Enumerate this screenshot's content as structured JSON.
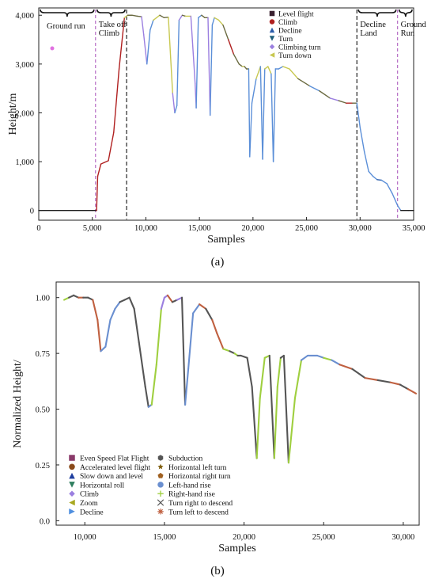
{
  "chart_data": [
    {
      "type": "line",
      "caption": "(a)",
      "xlabel": "Samples",
      "ylabel": "Height/m",
      "xlim": [
        0,
        35000
      ],
      "ylim": [
        -200,
        4150
      ],
      "x_ticks": [
        0,
        5000,
        10000,
        15000,
        20000,
        25000,
        30000,
        35000
      ],
      "x_tick_labels": [
        "0",
        "5,000",
        "10,000",
        "15,000",
        "20,000",
        "25,000",
        "30,000",
        "35,000"
      ],
      "y_ticks": [
        0,
        1000,
        2000,
        3000,
        4000
      ],
      "y_tick_labels": [
        "0",
        "1,000",
        "2,000",
        "3,000",
        "4,000"
      ],
      "phase_boundaries": [
        5300,
        8200,
        29700,
        33500
      ],
      "phase_labels": [
        {
          "text": "Ground run",
          "x_start": 0,
          "x_end": 5300
        },
        {
          "text": "Take off",
          "x_start": 5300,
          "x_end": 8200
        },
        {
          "text": "Climb",
          "x_start": 5300,
          "x_end": 8200
        },
        {
          "text": "Decline",
          "x_start": 29700,
          "x_end": 33500
        },
        {
          "text": "Land",
          "x_start": 29700,
          "x_end": 33500
        },
        {
          "text": "Ground",
          "x_start": 33500,
          "x_end": 35000
        },
        {
          "text": "Run",
          "x_start": 33500,
          "x_end": 35000
        }
      ],
      "legend": [
        {
          "label": "Level flight",
          "marker": "square",
          "color": "#3a2030"
        },
        {
          "label": "Climb",
          "marker": "circle",
          "color": "#b02020"
        },
        {
          "label": "Decline",
          "marker": "triangle-up",
          "color": "#2a5caa"
        },
        {
          "label": "Turn",
          "marker": "triangle-down",
          "color": "#1f5f7a"
        },
        {
          "label": "Climbing turn",
          "marker": "diamond",
          "color": "#9b7fe0"
        },
        {
          "label": "Turn down",
          "marker": "triangle-left",
          "color": "#c8c850"
        }
      ],
      "x": [
        0,
        5000,
        5400,
        5500,
        5800,
        6100,
        6500,
        7000,
        7500,
        8000,
        8300,
        8700,
        9200,
        9600,
        9800,
        10100,
        10400,
        10700,
        11000,
        11300,
        11700,
        12100,
        12500,
        12700,
        12900,
        13100,
        13400,
        13700,
        14200,
        14600,
        14700,
        14900,
        15200,
        15500,
        15800,
        16000,
        16200,
        16400,
        16800,
        17200,
        17700,
        18200,
        18700,
        19000,
        19200,
        19400,
        19600,
        19700,
        19900,
        20300,
        20700,
        20900,
        21100,
        21400,
        21700,
        21900,
        22100,
        22400,
        22800,
        23400,
        24200,
        25300,
        26200,
        27200,
        28000,
        28700,
        29300,
        29700,
        30000,
        30400,
        30800,
        31200,
        31600,
        32000,
        32500,
        33000,
        33500,
        33800,
        34500,
        35000
      ],
      "series": [
        {
          "values": [
            0,
            0,
            0,
            700,
            950,
            980,
            1020,
            1600,
            2900,
            3950,
            4000,
            4000,
            3980,
            3970,
            3600,
            3000,
            3700,
            3900,
            3950,
            4000,
            3950,
            3960,
            2400,
            2000,
            2150,
            3900,
            4000,
            3980,
            3980,
            2600,
            2100,
            3950,
            4000,
            3950,
            3950,
            1950,
            3800,
            3950,
            3900,
            3800,
            3500,
            3200,
            3000,
            2950,
            2950,
            2900,
            2900,
            1100,
            2200,
            2700,
            2950,
            1050,
            2900,
            2950,
            2800,
            1000,
            2900,
            2900,
            2950,
            2900,
            2700,
            2550,
            2450,
            2300,
            2250,
            2200,
            2200,
            2200,
            1700,
            1200,
            800,
            700,
            630,
            620,
            550,
            350,
            100,
            0,
            0,
            0
          ],
          "segment_colors": [
            "#1a1a1a",
            "#1a1a1a",
            "#b02020",
            "#b02020",
            "#b02020",
            "#b02020",
            "#b02020",
            "#b02020",
            "#b02020",
            "#c8c850",
            "#6a6a40",
            "#6a6a40",
            "#6a6a40",
            "#9b7fe0",
            "#9b7fe0",
            "#5b8fd8",
            "#5b8fd8",
            "#c8c850",
            "#c8c850",
            "#6a6a40",
            "#6a6a40",
            "#c8c850",
            "#9b7fe0",
            "#5b8fd8",
            "#5b8fd8",
            "#9b7fe0",
            "#6a6a40",
            "#c8c850",
            "#9b7fe0",
            "#9b7fe0",
            "#5b8fd8",
            "#5b8fd8",
            "#6a6a40",
            "#6a6a40",
            "#9b7fe0",
            "#5b8fd8",
            "#5b8fd8",
            "#c8c850",
            "#c8c850",
            "#6a6a40",
            "#b02020",
            "#6a6a40",
            "#6a6a40",
            "#c8c850",
            "#6a6a40",
            "#6a6a40",
            "#5b8fd8",
            "#5b8fd8",
            "#5b8fd8",
            "#c8c850",
            "#5b8fd8",
            "#5b8fd8",
            "#c8c850",
            "#c8c850",
            "#5b8fd8",
            "#5b8fd8",
            "#5b8fd8",
            "#5b8fd8",
            "#c8c850",
            "#c8c850",
            "#6a6a40",
            "#5b8fd8",
            "#6a6a40",
            "#9b7fe0",
            "#6a6a40",
            "#b02020",
            "#6a6a40",
            "#5b8fd8",
            "#5b8fd8",
            "#5b8fd8",
            "#5b8fd8",
            "#5b8fd8",
            "#2a5caa",
            "#5b8fd8",
            "#5b8fd8",
            "#5b8fd8",
            "#5b8fd8",
            "#1a1a1a",
            "#1a1a1a"
          ]
        }
      ]
    },
    {
      "type": "line",
      "caption": "(b)",
      "xlabel": "Samples",
      "ylabel": "Normalized Height/",
      "xlim": [
        8200,
        31000
      ],
      "ylim": [
        -0.02,
        1.07
      ],
      "x_ticks": [
        10000,
        15000,
        20000,
        25000,
        30000
      ],
      "x_tick_labels": [
        "10,000",
        "15,000",
        "20,000",
        "25,000",
        "30,000"
      ],
      "y_ticks": [
        0.0,
        0.25,
        0.5,
        0.75,
        1.0
      ],
      "y_tick_labels": [
        "0.0",
        "0.25",
        "0.50",
        "0.75",
        "1.00"
      ],
      "legend": [
        {
          "label": "Even Speed Flat Flight",
          "marker": "square",
          "color": "#8a3a6a"
        },
        {
          "label": "Accelerated level flight",
          "marker": "circle",
          "color": "#8a4a1a"
        },
        {
          "label": "Slow down and level",
          "marker": "triangle-up",
          "color": "#1f3f9f"
        },
        {
          "label": "Horizontal roll",
          "marker": "triangle-down",
          "color": "#2f7f5f"
        },
        {
          "label": "Climb",
          "marker": "diamond",
          "color": "#9b7fe0"
        },
        {
          "label": "Zoom",
          "marker": "triangle-left",
          "color": "#a8a820"
        },
        {
          "label": "Decline",
          "marker": "triangle-right",
          "color": "#4f8fdf"
        },
        {
          "label": "Subduction",
          "marker": "hexagon",
          "color": "#555555"
        },
        {
          "label": "Horizontal left turn",
          "marker": "star",
          "color": "#806010"
        },
        {
          "label": "Horizontal right turn",
          "marker": "pentagon",
          "color": "#a06020"
        },
        {
          "label": "Left-hand rise",
          "marker": "circle",
          "color": "#6a8fd0"
        },
        {
          "label": "Right-hand rise",
          "marker": "plus",
          "color": "#9fcf3f"
        },
        {
          "label": "Turn right to descend",
          "marker": "x",
          "color": "#555555"
        },
        {
          "label": "Turn left to descend",
          "marker": "asterisk",
          "color": "#c06040"
        }
      ],
      "x": [
        8700,
        9000,
        9300,
        9600,
        9900,
        10200,
        10500,
        10800,
        11000,
        11300,
        11600,
        11900,
        12200,
        12500,
        12800,
        13100,
        13400,
        13800,
        14000,
        14200,
        14500,
        14800,
        15000,
        15200,
        15500,
        15800,
        16100,
        16300,
        16500,
        16800,
        17200,
        17600,
        18000,
        18300,
        18700,
        19100,
        19400,
        19600,
        19800,
        20200,
        20500,
        20800,
        21000,
        21300,
        21600,
        21900,
        22100,
        22300,
        22500,
        22800,
        23200,
        23600,
        24000,
        24600,
        25000,
        25500,
        26000,
        26800,
        27600,
        28400,
        29200,
        29800,
        30300,
        30800
      ],
      "series": [
        {
          "values": [
            0.99,
            1.0,
            1.01,
            1.0,
            1.0,
            1.0,
            0.99,
            0.9,
            0.76,
            0.78,
            0.9,
            0.95,
            0.98,
            0.99,
            1.0,
            0.95,
            0.8,
            0.6,
            0.51,
            0.52,
            0.7,
            0.95,
            1.0,
            1.01,
            0.98,
            0.99,
            1.0,
            0.52,
            0.68,
            0.93,
            0.97,
            0.95,
            0.9,
            0.84,
            0.77,
            0.76,
            0.75,
            0.74,
            0.74,
            0.73,
            0.6,
            0.28,
            0.55,
            0.73,
            0.74,
            0.28,
            0.6,
            0.73,
            0.74,
            0.26,
            0.55,
            0.72,
            0.74,
            0.74,
            0.73,
            0.72,
            0.7,
            0.68,
            0.64,
            0.63,
            0.62,
            0.61,
            0.59,
            0.57
          ],
          "segment_colors": [
            "#9fcf3f",
            "#555555",
            "#555555",
            "#c06040",
            "#555555",
            "#555555",
            "#c06040",
            "#c06040",
            "#6a8fd0",
            "#6a8fd0",
            "#6a8fd0",
            "#6a8fd0",
            "#555555",
            "#555555",
            "#555555",
            "#555555",
            "#555555",
            "#555555",
            "#6a8fd0",
            "#9fcf3f",
            "#9fcf3f",
            "#9b7fe0",
            "#9b7fe0",
            "#c06040",
            "#555555",
            "#9b7fe0",
            "#555555",
            "#6a8fd0",
            "#6a8fd0",
            "#6a8fd0",
            "#c06040",
            "#555555",
            "#c06040",
            "#c06040",
            "#9fcf3f",
            "#555555",
            "#9fcf3f",
            "#555555",
            "#555555",
            "#555555",
            "#555555",
            "#9fcf3f",
            "#9fcf3f",
            "#9fcf3f",
            "#555555",
            "#9fcf3f",
            "#9fcf3f",
            "#555555",
            "#555555",
            "#9fcf3f",
            "#9fcf3f",
            "#6a8fd0",
            "#6a8fd0",
            "#6a8fd0",
            "#9fcf3f",
            "#6a8fd0",
            "#c06040",
            "#555555",
            "#c06040",
            "#555555",
            "#c06040",
            "#555555",
            "#c06040"
          ]
        }
      ]
    }
  ]
}
